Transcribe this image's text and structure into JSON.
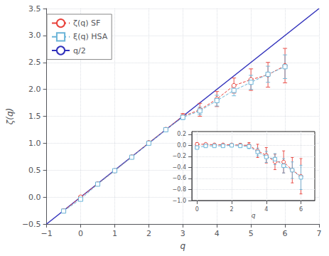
{
  "chart_data": [
    {
      "type": "line",
      "xlabel": "q",
      "ylabel": "ζ(q)",
      "xlim": [
        -1,
        7
      ],
      "ylim": [
        -0.5,
        3.5
      ],
      "xticks": [
        {
          "value": -1,
          "label": "−1"
        },
        0,
        1,
        2,
        3,
        4,
        5,
        6,
        7
      ],
      "yticks": [
        {
          "value": -0.5,
          "label": "−0.5"
        },
        {
          "value": 0,
          "label": "0.0"
        },
        0.5,
        {
          "value": 1.0,
          "label": "1.0"
        },
        1.5,
        {
          "value": 2.0,
          "label": "2.0"
        },
        2.5,
        {
          "value": 3.0,
          "label": "3.0"
        },
        3.5
      ],
      "grid": true,
      "legend": "upper left",
      "series": [
        {
          "name": "ζ(q) SF",
          "color": "#e8413a",
          "marker": "circle",
          "line_style": "dashed",
          "x": [
            -0.5,
            0.0,
            0.5,
            1.0,
            1.5,
            2.0,
            2.5,
            3.0,
            3.5,
            4.0,
            4.5,
            5.0,
            5.5,
            6.0
          ],
          "values": [
            -0.255,
            0.0,
            0.245,
            0.49,
            0.745,
            1.01,
            1.255,
            1.5,
            1.62,
            1.82,
            2.07,
            2.18,
            2.27,
            2.44
          ],
          "errors": [
            0.03,
            0.02,
            0.02,
            0.02,
            0.02,
            0.02,
            0.03,
            0.05,
            0.12,
            0.14,
            0.14,
            0.2,
            0.23,
            0.32
          ]
        },
        {
          "name": "ξ(q) HSA",
          "color": "#6ab4d8",
          "marker": "square",
          "line_style": "dashed",
          "x": [
            -0.5,
            0.0,
            0.5,
            1.0,
            1.5,
            2.0,
            2.5,
            3.0,
            3.5,
            4.0,
            4.5,
            5.0,
            5.5,
            6.0
          ],
          "values": [
            -0.26,
            -0.04,
            0.24,
            0.49,
            0.74,
            1.0,
            1.25,
            1.48,
            1.6,
            1.79,
            1.98,
            2.13,
            2.28,
            2.42
          ],
          "errors": [
            0.03,
            0.02,
            0.02,
            0.02,
            0.02,
            0.02,
            0.03,
            0.04,
            0.07,
            0.1,
            0.1,
            0.13,
            0.15,
            0.22
          ]
        },
        {
          "name": "q/2",
          "color": "#3030bb",
          "line_style": "solid",
          "x": [
            -1,
            7
          ],
          "values": [
            -0.5,
            3.5
          ]
        }
      ]
    },
    {
      "type": "line",
      "xlabel": "q",
      "xlim": [
        -0.3,
        6.8
      ],
      "ylim": [
        -1.0,
        0.25
      ],
      "xticks": [
        0,
        2,
        4,
        6
      ],
      "yticks": [
        {
          "value": -1.0,
          "label": "−1.0"
        },
        {
          "value": -0.8,
          "label": "−0.8"
        },
        {
          "value": -0.6,
          "label": "−0.6"
        },
        {
          "value": -0.4,
          "label": "−0.4"
        },
        {
          "value": -0.2,
          "label": "−0.2"
        },
        {
          "value": 0.0,
          "label": "0.0"
        },
        0.2
      ],
      "grid": true,
      "series": [
        {
          "color": "#e8413a",
          "marker": "circle",
          "line_style": "dashed",
          "x": [
            0.0,
            0.5,
            1.0,
            1.5,
            2.0,
            2.5,
            3.0,
            3.5,
            4.0,
            4.5,
            5.0,
            5.5,
            6.0
          ],
          "values": [
            0.02,
            0.02,
            0.01,
            0.01,
            0.01,
            0.005,
            0.0,
            -0.1,
            -0.18,
            -0.3,
            -0.3,
            -0.45,
            -0.56
          ],
          "errors": [
            0.03,
            0.02,
            0.02,
            0.02,
            0.02,
            0.03,
            0.05,
            0.12,
            0.14,
            0.14,
            0.2,
            0.23,
            0.32
          ]
        },
        {
          "color": "#6ab4d8",
          "marker": "square",
          "line_style": "dashed",
          "x": [
            0.0,
            0.5,
            1.0,
            1.5,
            2.0,
            2.5,
            3.0,
            3.5,
            4.0,
            4.5,
            5.0,
            5.5,
            6.0
          ],
          "values": [
            -0.04,
            -0.01,
            -0.01,
            -0.01,
            0.0,
            -0.01,
            -0.02,
            -0.12,
            -0.21,
            -0.25,
            -0.37,
            -0.45,
            -0.58
          ],
          "errors": [
            0.02,
            0.02,
            0.02,
            0.02,
            0.02,
            0.03,
            0.04,
            0.07,
            0.1,
            0.1,
            0.13,
            0.15,
            0.22
          ]
        }
      ]
    }
  ]
}
